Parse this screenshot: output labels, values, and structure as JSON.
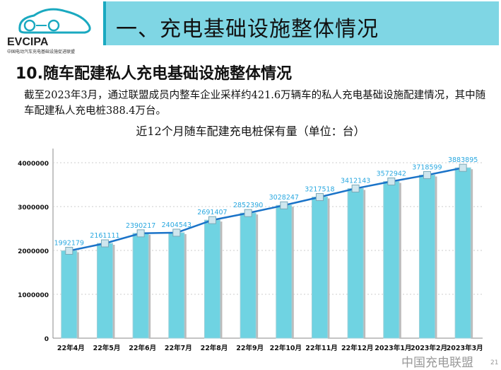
{
  "logo": {
    "brand": "EVCIPA",
    "tagline_en": "China Electric Vehicle Charging Infrastructure Promotion Alliance",
    "tagline_cn": "中国电动汽车充电基础设施促进联盟",
    "color": "#1aa9c0"
  },
  "header": {
    "title": "一、充电基础设施整体情况"
  },
  "section": {
    "title": "10.随车配建私人充电基础设施整体情况"
  },
  "paragraph": "截至2023年3月，通过联盟成员内整车企业采样约421.6万辆车的私人充电基础设施配建情况，其中随车配建私人充电桩388.4万台。",
  "chart_data": {
    "type": "bar",
    "title": "近12个月随车配建充电桩保有量（单位：台）",
    "categories": [
      "22年4月",
      "22年5月",
      "22年6月",
      "22年7月",
      "22年8月",
      "22年9月",
      "22年10月",
      "22年11月",
      "22年12月",
      "2023年1月",
      "2023年2月",
      "2023年3月"
    ],
    "values": [
      1992179,
      2161111,
      2390217,
      2404543,
      2691407,
      2852390,
      3028247,
      3217518,
      3412143,
      3572942,
      3718599,
      3883895
    ],
    "overlay": "line",
    "ylim": [
      0,
      4000000
    ],
    "yticks": [
      0,
      1000000,
      2000000,
      3000000,
      4000000
    ],
    "grid": true,
    "bar_color": "#6fd3e2",
    "line_color": "#1a73c8",
    "label_color": "#2aa8e0"
  },
  "footer": {
    "watermark": "中国充电联盟",
    "page": "21"
  }
}
